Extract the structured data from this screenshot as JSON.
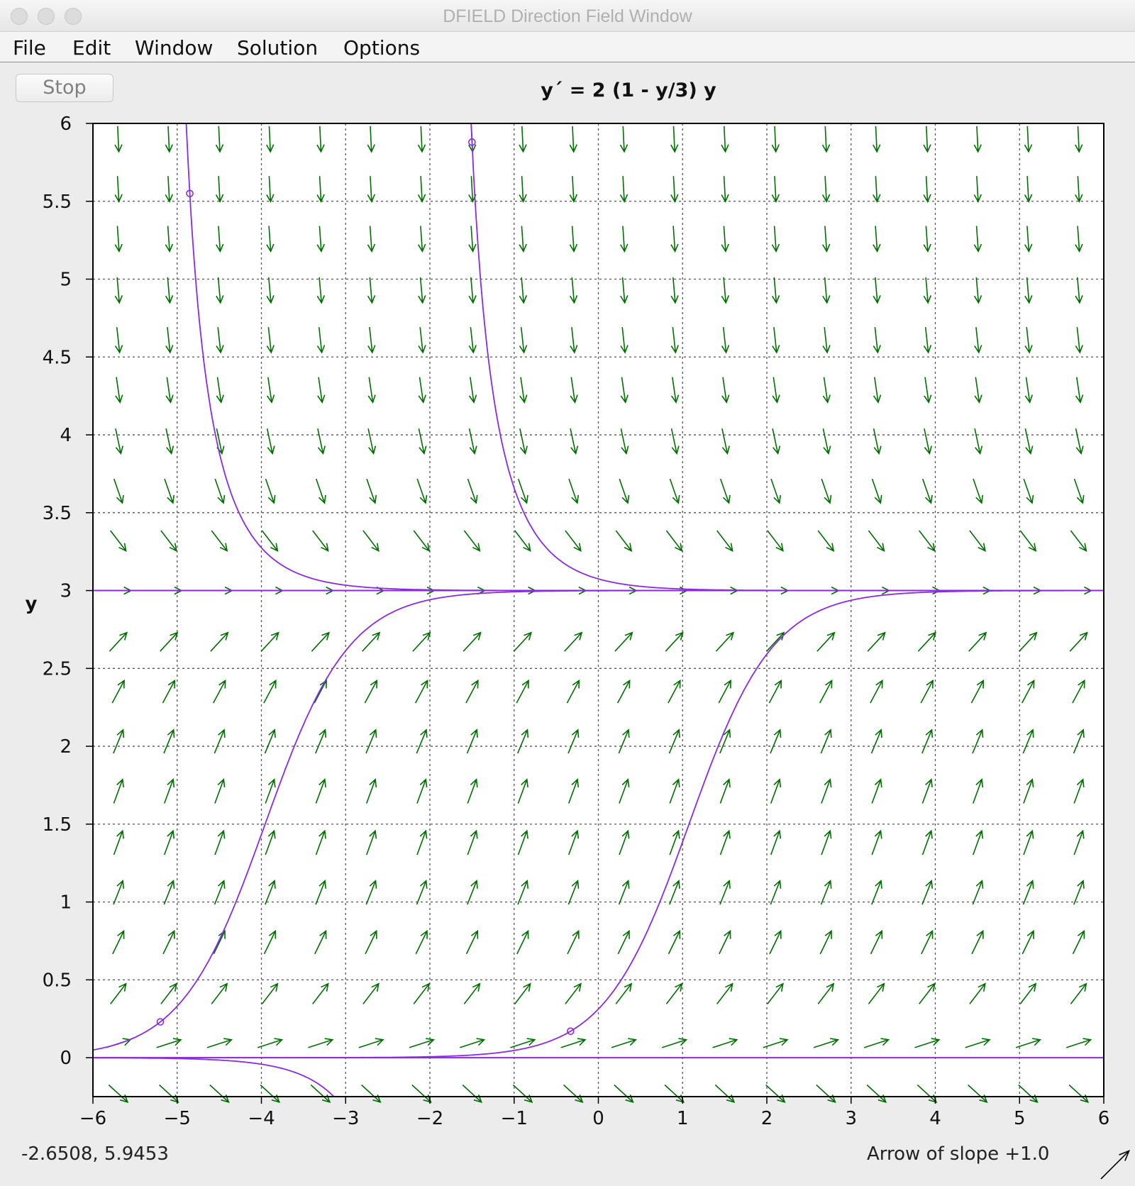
{
  "window": {
    "title": "DFIELD Direction Field Window"
  },
  "menubar": {
    "items": [
      "File",
      "Edit",
      "Window",
      "Solution",
      "Options"
    ]
  },
  "toolbar": {
    "stop_label": "Stop"
  },
  "equation": "y´ = 2 (1 - y/3) y",
  "status": {
    "cursor_coords": "-2.6508,  5.9453",
    "slope_legend": "Arrow of slope +1.0"
  },
  "colors": {
    "field_arrows": "#007000",
    "solutions": "#8a2be2",
    "grid": "#555555"
  },
  "chart_data": {
    "type": "direction_field",
    "ode": "y' = 2(1 - y/3)y",
    "ylabel": "y",
    "xlabel": "",
    "xlim": [
      -6,
      6
    ],
    "ylim": [
      -0.25,
      6
    ],
    "xticks": [
      -6,
      -5,
      -4,
      -3,
      -2,
      -1,
      0,
      1,
      2,
      3,
      4,
      5,
      6
    ],
    "yticks": [
      0,
      0.5,
      1,
      1.5,
      2,
      2.5,
      3,
      3.5,
      4,
      4.5,
      5,
      5.5,
      6
    ],
    "ytick_labels": [
      "0",
      "0.5",
      "1",
      "1.5",
      "2",
      "2.5",
      "3",
      "3.5",
      "4",
      "4.5",
      "5",
      "5.5",
      "6"
    ],
    "grid": true,
    "field_grid": {
      "x": [
        -5.7,
        -5.1,
        -4.5,
        -3.9,
        -3.3,
        -2.7,
        -2.1,
        -1.5,
        -0.9,
        -0.3,
        0.3,
        0.9,
        1.5,
        2.1,
        2.7,
        3.3,
        3.9,
        4.5,
        5.1,
        5.7
      ],
      "y": [
        5.9,
        5.58,
        5.26,
        4.93,
        4.61,
        4.29,
        3.96,
        3.64,
        3.32,
        3.0,
        2.67,
        2.35,
        2.03,
        1.71,
        1.38,
        1.06,
        0.74,
        0.41,
        0.09,
        -0.23
      ]
    },
    "equilibria": [
      0,
      3
    ],
    "solution_points": [
      {
        "x": -4.85,
        "y": 5.55
      },
      {
        "x": -1.5,
        "y": 5.88
      },
      {
        "x": -5.2,
        "y": 0.23
      },
      {
        "x": -0.33,
        "y": 0.17
      }
    ],
    "slope_indicator": 1.0
  }
}
